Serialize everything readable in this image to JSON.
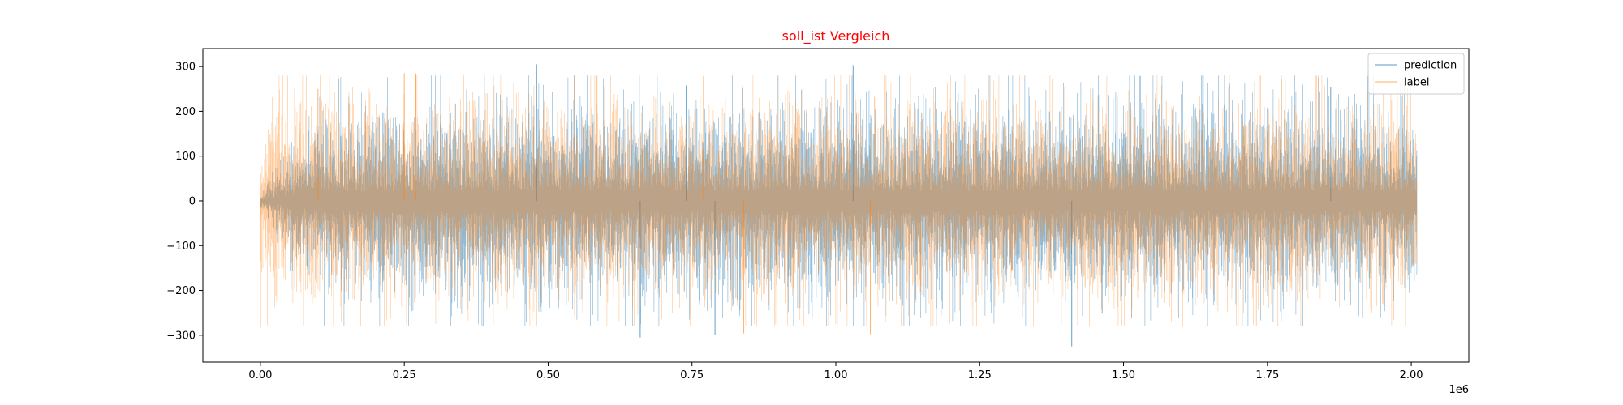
{
  "chart_data": {
    "type": "line",
    "title": "soll_ist Vergleich",
    "title_color": "#ff0000",
    "xlabel": "",
    "ylabel": "",
    "x_offset_label": "1e6",
    "xlim": [
      -0.1,
      2.1
    ],
    "ylim": [
      -360,
      340
    ],
    "x_ticks": [
      0.0,
      0.25,
      0.5,
      0.75,
      1.0,
      1.25,
      1.5,
      1.75,
      2.0
    ],
    "x_tick_labels": [
      "0.00",
      "0.25",
      "0.50",
      "0.75",
      "1.00",
      "1.25",
      "1.50",
      "1.75",
      "2.00"
    ],
    "y_ticks": [
      300,
      200,
      100,
      0,
      -100,
      -200,
      -300
    ],
    "y_tick_labels": [
      "300",
      "200",
      "100",
      "0",
      "−100",
      "−200",
      "−300"
    ],
    "grid": false,
    "legend_position": "top-right",
    "series": [
      {
        "name": "prediction",
        "color": "#1f77b4",
        "alpha": 0.5,
        "x_range": [
          0.0,
          2.01
        ],
        "envelope": {
          "x": [
            0.0,
            0.05,
            0.1,
            0.2,
            0.5,
            1.0,
            1.5,
            2.0,
            2.01
          ],
          "typical_amplitude": [
            5,
            60,
            100,
            110,
            110,
            110,
            110,
            110,
            100
          ]
        },
        "peaks": [
          {
            "x": 0.48,
            "y": 305
          },
          {
            "x": 1.03,
            "y": 303
          },
          {
            "x": 0.66,
            "y": -305
          },
          {
            "x": 1.41,
            "y": -325
          },
          {
            "x": 0.79,
            "y": -300
          },
          {
            "x": 1.86,
            "y": 255
          },
          {
            "x": 0.74,
            "y": 258
          }
        ]
      },
      {
        "name": "label",
        "color": "#ff7f0e",
        "alpha": 0.4,
        "x_range": [
          0.0,
          2.01
        ],
        "envelope": {
          "x": [
            0.0,
            0.02,
            0.05,
            0.1,
            0.2,
            0.5,
            1.0,
            1.5,
            2.0,
            2.01
          ],
          "typical_amplitude": [
            80,
            120,
            110,
            120,
            110,
            110,
            110,
            110,
            110,
            100
          ]
        },
        "peaks": [
          {
            "x": 0.0,
            "y": -283
          },
          {
            "x": 0.25,
            "y": 285
          },
          {
            "x": 0.27,
            "y": 285
          },
          {
            "x": 0.77,
            "y": 278
          },
          {
            "x": 1.06,
            "y": -298
          },
          {
            "x": 0.84,
            "y": -296
          },
          {
            "x": 1.28,
            "y": 257
          },
          {
            "x": 0.1,
            "y": 250
          }
        ]
      }
    ]
  }
}
